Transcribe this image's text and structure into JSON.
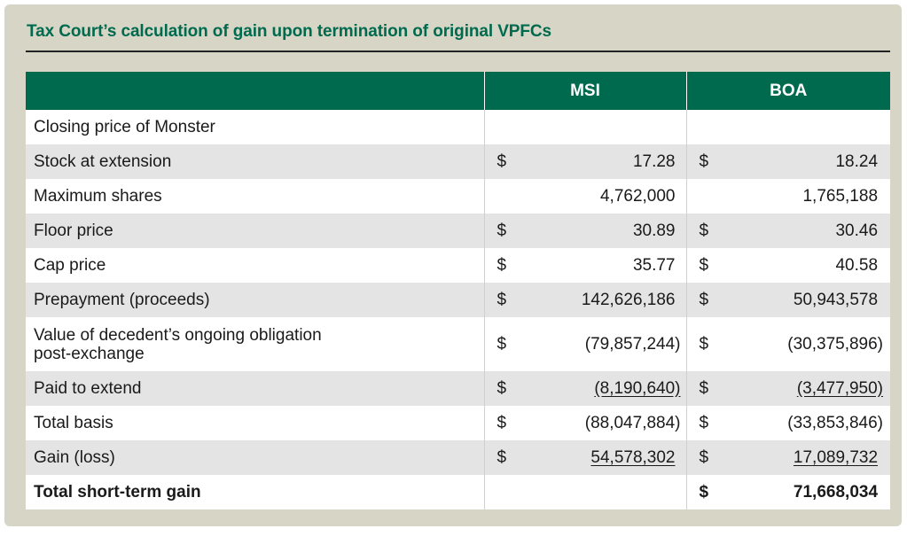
{
  "title": "Tax Court’s calculation of gain upon termination of original VPFCs",
  "columns": [
    "MSI",
    "BOA"
  ],
  "rows": [
    {
      "label": "Closing price of Monster",
      "msi_dollar": "",
      "msi": "",
      "boa_dollar": "",
      "boa": ""
    },
    {
      "label": "Stock at extension",
      "msi_dollar": "$",
      "msi": "17.28",
      "boa_dollar": "$",
      "boa": "18.24"
    },
    {
      "label": "Maximum shares",
      "msi_dollar": "",
      "msi": "4,762,000",
      "boa_dollar": "",
      "boa": "1,765,188"
    },
    {
      "label": "Floor price",
      "msi_dollar": "$",
      "msi": "30.89",
      "boa_dollar": "$",
      "boa": "30.46"
    },
    {
      "label": "Cap price",
      "msi_dollar": "$",
      "msi": "35.77",
      "boa_dollar": "$",
      "boa": "40.58"
    },
    {
      "label": "Prepayment (proceeds)",
      "msi_dollar": "$",
      "msi": "142,626,186",
      "boa_dollar": "$",
      "boa": "50,943,578"
    },
    {
      "label_line1": "Value of decedent’s ongoing obligation",
      "label_line2": "post-exchange",
      "msi_dollar": "$",
      "msi": "(79,857,244)",
      "boa_dollar": "$",
      "boa": "(30,375,896)"
    },
    {
      "label": "Paid to extend",
      "msi_dollar": "$",
      "msi": "(8,190,640)",
      "boa_dollar": "$",
      "boa": "(3,477,950)"
    },
    {
      "label": "Total basis",
      "msi_dollar": "$",
      "msi": "(88,047,884)",
      "boa_dollar": "$",
      "boa": "(33,853,846)"
    },
    {
      "label": "Gain (loss)",
      "msi_dollar": "$",
      "msi": "54,578,302",
      "boa_dollar": "$",
      "boa": "17,089,732"
    },
    {
      "label": "Total short-term gain",
      "msi_dollar": "",
      "msi": "",
      "boa_dollar": "$",
      "boa": "71,668,034"
    }
  ]
}
